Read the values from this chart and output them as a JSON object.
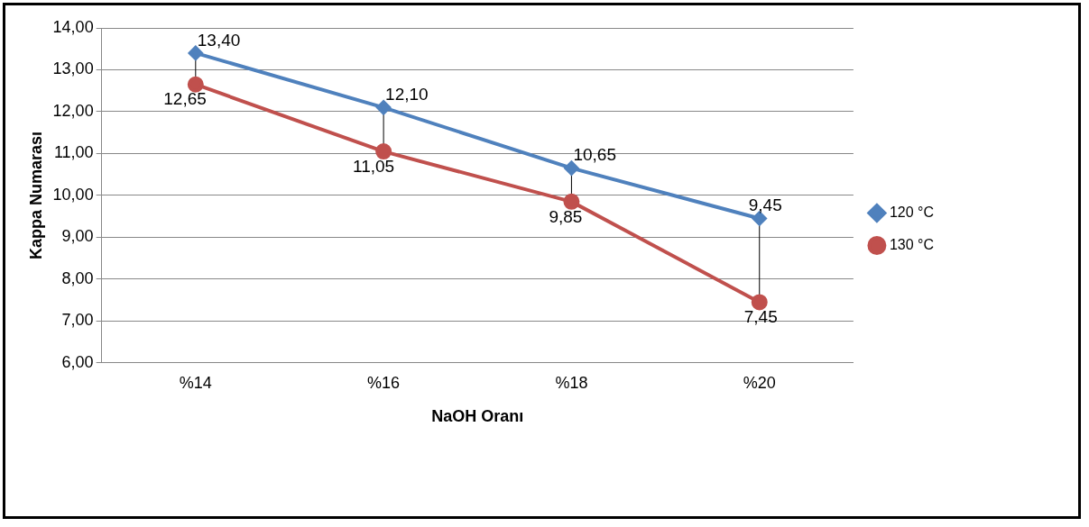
{
  "chart_data": {
    "type": "line",
    "xlabel": "NaOH Oranı",
    "ylabel": "Kappa Numarası",
    "categories": [
      "%14",
      "%16",
      "%18",
      "%20"
    ],
    "series": [
      {
        "name": "120 °C",
        "color": "#4f81bd",
        "marker": "diamond",
        "values": [
          13.4,
          12.1,
          10.65,
          9.45
        ],
        "value_labels": [
          "13,40",
          "12,10",
          "10,65",
          "9,45"
        ]
      },
      {
        "name": "130 °C",
        "color": "#c0504d",
        "marker": "circle",
        "values": [
          12.65,
          11.05,
          9.85,
          7.45
        ],
        "value_labels": [
          "12,65",
          "11,05",
          "9,85",
          "7,45"
        ]
      }
    ],
    "ylim": [
      6,
      14
    ],
    "yticks": [
      {
        "value": 6,
        "label": "6,00"
      },
      {
        "value": 7,
        "label": "7,00"
      },
      {
        "value": 8,
        "label": "8,00"
      },
      {
        "value": 9,
        "label": "9,00"
      },
      {
        "value": 10,
        "label": "10,00"
      },
      {
        "value": 11,
        "label": "11,00"
      },
      {
        "value": 12,
        "label": "12,00"
      },
      {
        "value": 13,
        "label": "13,00"
      },
      {
        "value": 14,
        "label": "14,00"
      }
    ],
    "grid": "y",
    "legend": "right"
  }
}
